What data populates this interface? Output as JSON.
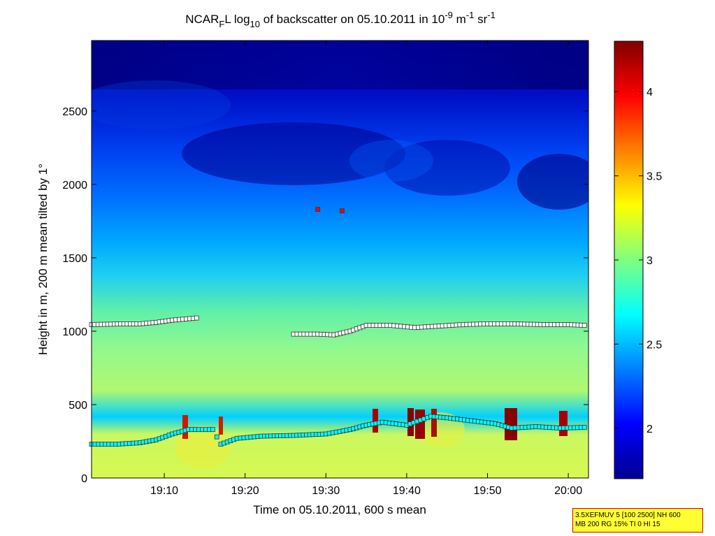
{
  "chart_data": {
    "type": "heatmap",
    "title": {
      "prefix": "NCAR",
      "sub1": "F",
      "mid1": "L log",
      "sub2": "10",
      "mid2": " of backscatter on 05.10.2011 in 10",
      "sup1": "-9",
      "mid3": " m",
      "sup2": "-1",
      "mid4": " sr",
      "sup3": "-1"
    },
    "xlabel": "Time on 05.10.2011, 600 s mean",
    "ylabel": "Height in m, 200 m mean tilted by 1°",
    "xlim": [
      "19:01:00",
      "20:02:30"
    ],
    "ylim": [
      0,
      2980
    ],
    "x_ticks": [
      "19:10",
      "19:20",
      "19:30",
      "19:40",
      "19:50",
      "20:00"
    ],
    "y_ticks": [
      0,
      500,
      1000,
      1500,
      2000,
      2500
    ],
    "colorbar": {
      "range": [
        1.7,
        4.3
      ],
      "ticks": [
        "2",
        "2.5",
        "3",
        "3.5",
        "4"
      ],
      "colormap": "jet"
    },
    "colors": {
      "low": "#00008f",
      "high": "#800000",
      "upper_marker": "#ffffff",
      "lower_marker": "#00ffff",
      "special_marker": "#ff0000"
    },
    "upper_layer_heights": [
      {
        "time": "19:01",
        "height": 1045
      },
      {
        "time": "19:05",
        "height": 1050
      },
      {
        "time": "19:07",
        "height": 1050
      },
      {
        "time": "19:09",
        "height": 1060
      },
      {
        "time": "19:11",
        "height": 1075
      },
      {
        "time": "19:14",
        "height": 1090
      },
      {
        "time": "19:26",
        "height": 980
      },
      {
        "time": "19:29",
        "height": 980
      },
      {
        "time": "19:31",
        "height": 975
      },
      {
        "time": "19:33",
        "height": 1000
      },
      {
        "time": "19:35",
        "height": 1040
      },
      {
        "time": "19:38",
        "height": 1040
      },
      {
        "time": "19:41",
        "height": 1025
      },
      {
        "time": "19:44",
        "height": 1035
      },
      {
        "time": "19:47",
        "height": 1045
      },
      {
        "time": "19:50",
        "height": 1050
      },
      {
        "time": "19:53",
        "height": 1050
      },
      {
        "time": "19:57",
        "height": 1045
      },
      {
        "time": "20:00",
        "height": 1045
      },
      {
        "time": "20:02",
        "height": 1040
      }
    ],
    "boundary_layer_heights": [
      {
        "time": "19:01",
        "height": 230
      },
      {
        "time": "19:04",
        "height": 230
      },
      {
        "time": "19:07",
        "height": 240
      },
      {
        "time": "19:09",
        "height": 260
      },
      {
        "time": "19:11",
        "height": 300
      },
      {
        "time": "19:13",
        "height": 330
      },
      {
        "time": "19:16",
        "height": 330
      },
      {
        "time": "19:17",
        "height": 230
      },
      {
        "time": "19:19",
        "height": 270
      },
      {
        "time": "19:22",
        "height": 285
      },
      {
        "time": "19:26",
        "height": 290
      },
      {
        "time": "19:30",
        "height": 300
      },
      {
        "time": "19:33",
        "height": 330
      },
      {
        "time": "19:35",
        "height": 360
      },
      {
        "time": "19:37",
        "height": 380
      },
      {
        "time": "19:40",
        "height": 360
      },
      {
        "time": "19:43",
        "height": 420
      },
      {
        "time": "19:45",
        "height": 410
      },
      {
        "time": "19:48",
        "height": 390
      },
      {
        "time": "19:51",
        "height": 370
      },
      {
        "time": "19:53",
        "height": 340
      },
      {
        "time": "19:56",
        "height": 350
      },
      {
        "time": "19:59",
        "height": 340
      },
      {
        "time": "20:02",
        "height": 345
      }
    ],
    "special_points": [
      {
        "time": "19:29",
        "height": 1830
      },
      {
        "time": "19:32",
        "height": 1820
      }
    ]
  },
  "info_box": {
    "line1": "3.5XEFMUV 5 [100 2500] NH 600",
    "line2": "MB 200 RG 15% TI 0 HI 15"
  }
}
